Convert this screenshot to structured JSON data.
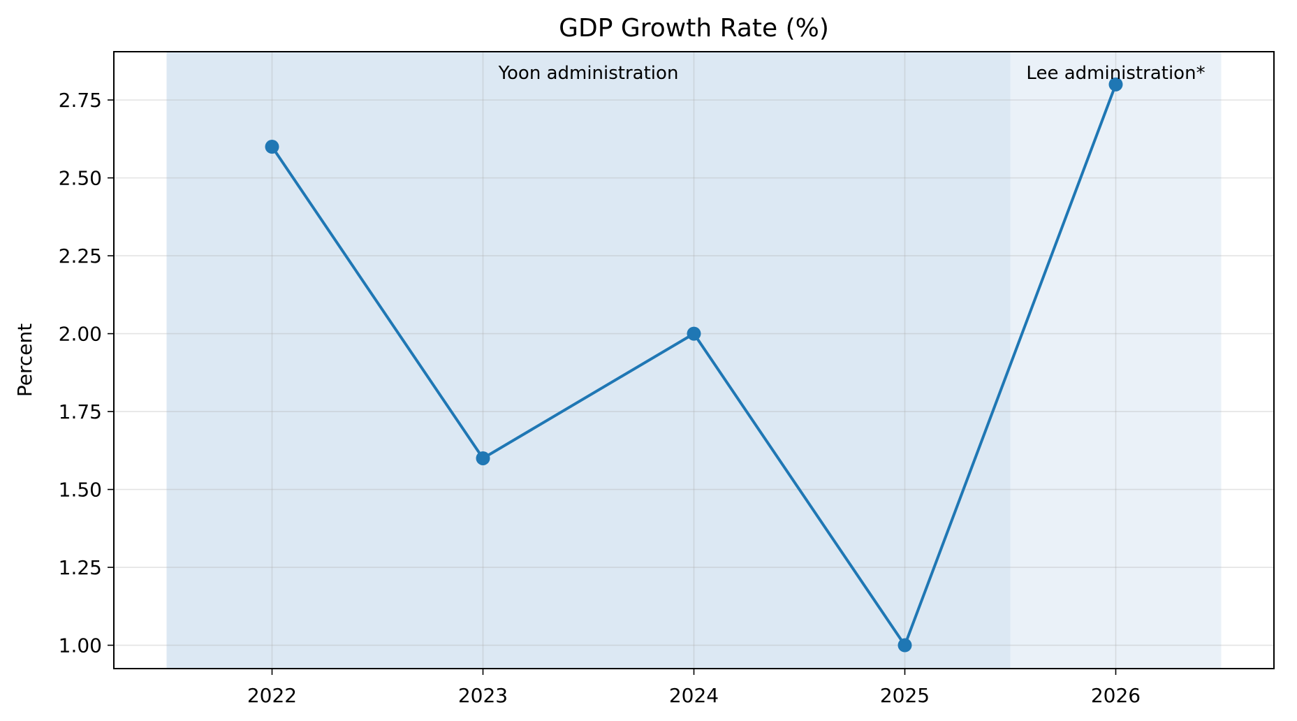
{
  "chart_data": {
    "type": "line",
    "title": "GDP Growth Rate (%)",
    "xlabel": "",
    "ylabel": "Percent",
    "categories": [
      "2022",
      "2023",
      "2024",
      "2025",
      "2026"
    ],
    "series": [
      {
        "values": [
          2.6,
          1.6,
          2.0,
          1.0,
          2.8
        ],
        "color": "#1f77b4"
      }
    ],
    "ylim": [
      0.925,
      2.905
    ],
    "xlim": [
      2021.25,
      2026.75
    ],
    "yticks": [
      1.0,
      1.25,
      1.5,
      1.75,
      2.0,
      2.25,
      2.5,
      2.75
    ],
    "ytick_labels": [
      "1.00",
      "1.25",
      "1.50",
      "1.75",
      "2.00",
      "2.25",
      "2.50",
      "2.75"
    ],
    "grid": true,
    "bands": [
      {
        "label": "Yoon administration",
        "x_start": 2021.5,
        "x_end": 2025.5,
        "color": "#dce8f3"
      },
      {
        "label": "Lee administration*",
        "x_start": 2025.5,
        "x_end": 2026.5,
        "color": "#eaf1f8"
      }
    ]
  }
}
